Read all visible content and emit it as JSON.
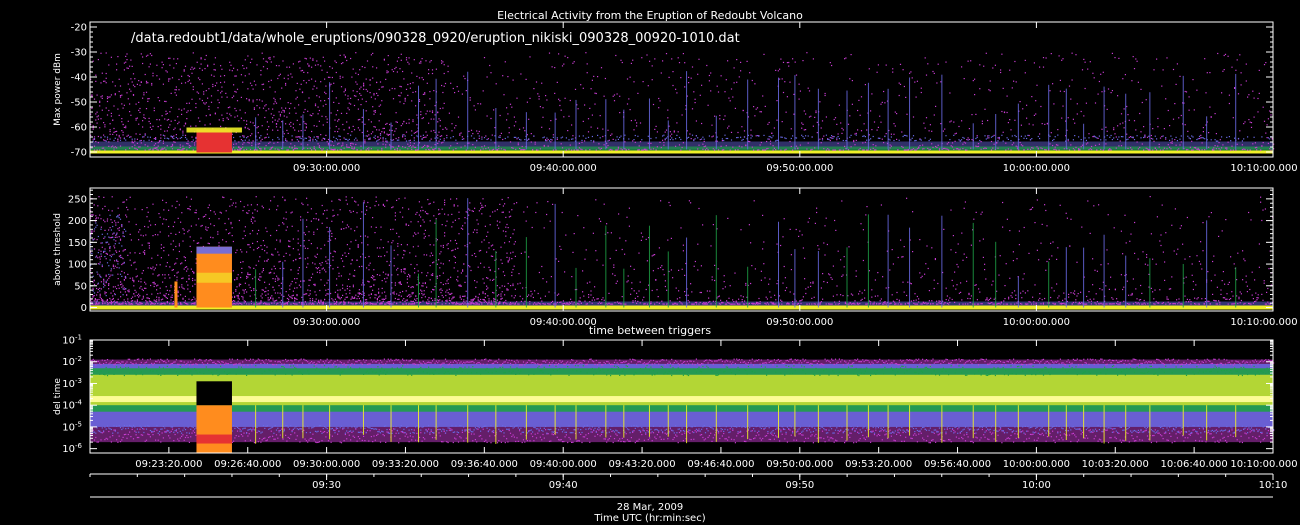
{
  "title": "Electrical Activity from the Eruption of Redoubt Volcano",
  "file_path": "/data.redoubt1/data/whole_eruptions/090328_0920/eruption_nikiski_090328_00920-1010.dat",
  "footer": {
    "date": "28 Mar, 2009",
    "axis_label": "Time UTC (hr:min:sec)"
  },
  "colors": {
    "background": "#000000",
    "axes": "#ffffff",
    "magenta": "#c83cd2",
    "blue": "#6a6ae6",
    "green": "#1ea046",
    "yellow": "#f0f028",
    "orange": "#ff8c1e",
    "red": "#e63232"
  },
  "chart_data": [
    {
      "type": "heatmap",
      "title": "",
      "xlabel": "",
      "ylabel": "Max power dBm",
      "xlim": [
        "09:20:00",
        "10:10:00"
      ],
      "ylim": [
        -72,
        -18
      ],
      "yticks": [
        "-20",
        "-30",
        "-40",
        "-50",
        "-60",
        "-70"
      ],
      "xticks": [
        "09:30:00.000",
        "09:40:00.000",
        "09:50:00.000",
        "10:00:00.000",
        "10:10:00.000"
      ],
      "features": {
        "baseline_dBm": -69,
        "baseline_band_color": "yellow",
        "scatter_top_dBm": -30,
        "hot_block": {
          "start": "09:24:30",
          "end": "09:26:00",
          "top_dBm": -61
        }
      }
    },
    {
      "type": "heatmap",
      "title": "",
      "xlabel": "",
      "ylabel": "above threshold",
      "xlim": [
        "09:20:00",
        "10:10:00"
      ],
      "ylim": [
        -8,
        275
      ],
      "yticks": [
        "250",
        "200",
        "150",
        "100",
        "50",
        "0"
      ],
      "xticks": [
        "09:30:00.000",
        "09:40:00.000",
        "09:50:00.000",
        "10:00:00.000",
        "10:10:00.000"
      ],
      "features": {
        "hot_block": {
          "start": "09:24:30",
          "end": "09:26:00",
          "top": 140
        }
      }
    },
    {
      "type": "heatmap",
      "title": "time between triggers",
      "xlabel": "",
      "ylabel": "del time",
      "xlim": [
        "09:20:00",
        "10:10:00"
      ],
      "ylim_log10": [
        -6.2,
        -1
      ],
      "yticks": [
        "10^-1",
        "10^-2",
        "10^-3",
        "10^-4",
        "10^-5",
        "10^-6"
      ],
      "xticks": [
        "09:23:20.000",
        "09:26:40.000",
        "09:30:00.000",
        "09:33:20.000",
        "09:36:40.000",
        "09:40:00.000",
        "09:43:20.000",
        "09:46:40.000",
        "09:50:00.000",
        "09:53:20.000",
        "09:56:40.000",
        "10:00:00.000",
        "10:03:20.000",
        "10:06:40.000",
        "10:10:00.000"
      ],
      "features": {
        "core_band_log10": -3.7,
        "hot_block": {
          "start": "09:24:30",
          "end": "09:26:00"
        }
      }
    }
  ],
  "time_axis": {
    "xlim": [
      "09:20:00",
      "10:10:00"
    ],
    "major_ticks": [
      "09:30",
      "09:40",
      "09:50",
      "10:00",
      "10:10"
    ]
  }
}
